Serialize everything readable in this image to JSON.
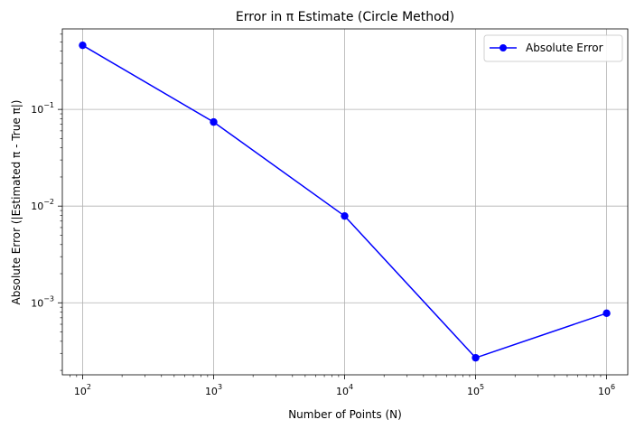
{
  "chart_data": {
    "type": "line",
    "title": "Error in π Estimate (Circle Method)",
    "xlabel": "Number of Points (N)",
    "ylabel": "Absolute Error (|Estimated π - True π|)",
    "xscale": "log",
    "yscale": "log",
    "xlim": [
      70,
      1450000
    ],
    "ylim": [
      0.00018,
      0.68
    ],
    "x_ticks": [
      {
        "value": 100,
        "base": "10",
        "exp": "2"
      },
      {
        "value": 1000,
        "base": "10",
        "exp": "3"
      },
      {
        "value": 10000,
        "base": "10",
        "exp": "4"
      },
      {
        "value": 100000,
        "base": "10",
        "exp": "5"
      },
      {
        "value": 1000000,
        "base": "10",
        "exp": "6"
      }
    ],
    "y_ticks": [
      {
        "value": 0.1,
        "base": "10",
        "exp": "−1"
      },
      {
        "value": 0.01,
        "base": "10",
        "exp": "−2"
      },
      {
        "value": 0.001,
        "base": "10",
        "exp": "−3"
      }
    ],
    "grid": true,
    "legend": "top-right",
    "series": [
      {
        "name": "Absolute Error",
        "color": "#0000ff",
        "marker": "circle",
        "x": [
          100,
          1000,
          10000,
          100000,
          1000000
        ],
        "y": [
          0.46,
          0.074,
          0.0079,
          0.00027,
          0.00078
        ]
      }
    ]
  }
}
